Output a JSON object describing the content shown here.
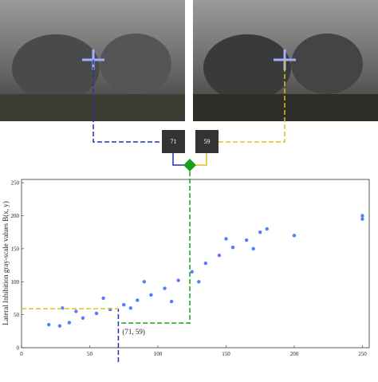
{
  "pixel_values": [
    71,
    59
  ],
  "chart_data": {
    "type": "scatter",
    "ylabel": "Lateral Inhibition gray-scale values B(x, y)",
    "xlim": [
      0,
      255
    ],
    "ylim": [
      0,
      255
    ],
    "xticks": [
      0,
      50,
      100,
      150,
      200,
      250
    ],
    "yticks": [
      0,
      50,
      100,
      150,
      200,
      250
    ],
    "series": [
      {
        "color": "#1f4fff",
        "x": [
          28,
          35,
          45,
          55,
          65,
          75,
          85,
          95,
          105,
          115,
          125,
          135,
          145,
          155,
          165,
          175,
          180,
          40,
          60,
          90,
          110,
          130,
          150,
          170,
          200,
          30,
          250,
          250,
          20,
          80
        ],
        "y": [
          33,
          38,
          45,
          52,
          58,
          65,
          72,
          80,
          90,
          102,
          115,
          128,
          140,
          152,
          163,
          175,
          180,
          55,
          75,
          100,
          70,
          100,
          165,
          150,
          170,
          60,
          195,
          200,
          35,
          60
        ]
      }
    ],
    "highlight": {
      "x": 71,
      "y": 59,
      "label": "(71, 59)"
    }
  }
}
